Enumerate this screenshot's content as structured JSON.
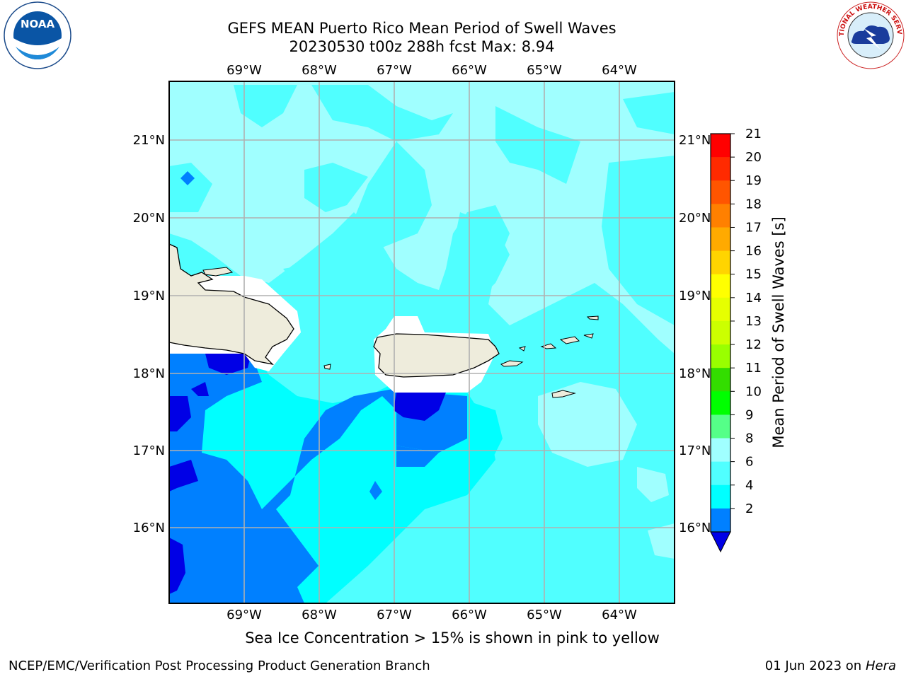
{
  "title": {
    "line1": "GEFS MEAN Puerto Rico Mean Period of Swell Waves",
    "line2": "20230530 t00z 288h fcst   Max: 8.94"
  },
  "map": {
    "lon_labels": [
      "69°W",
      "68°W",
      "67°W",
      "66°W",
      "65°W",
      "64°W"
    ],
    "lat_labels": [
      "21°N",
      "20°N",
      "19°N",
      "18°N",
      "17°N",
      "16°N"
    ],
    "land_color": "#eeecdc",
    "palette": {
      "2-4": "#0000e6",
      "4-6": "#0080ff",
      "6-8": "#00ffff",
      "8-9": "#50ffff",
      "9-10": "#a0ffff"
    }
  },
  "colorbar": {
    "label": "Mean Period of Swell Waves [s]",
    "ticks": [
      "21",
      "20",
      "19",
      "18",
      "17",
      "16",
      "15",
      "14",
      "13",
      "12",
      "11",
      "10",
      "9",
      "8",
      "6",
      "4",
      "2"
    ],
    "colors": [
      "#ff0000",
      "#ff2a00",
      "#ff5500",
      "#ff8000",
      "#ffaa00",
      "#ffd400",
      "#ffff00",
      "#e6ff00",
      "#ccff00",
      "#99ff00",
      "#33dd00",
      "#00ff00",
      "#55ff88",
      "#a0ffff",
      "#50ffff",
      "#00ffff",
      "#0080ff"
    ],
    "under_color": "#0000e6"
  },
  "footnote": "Sea Ice Concentration > 15% is shown in pink to yellow",
  "credit": "NCEP/EMC/Verification Post Processing Product Generation Branch",
  "date": {
    "text": "01 Jun 2023 on",
    "system": "Hera"
  },
  "logos": {
    "left": "NOAA",
    "right": "NATIONAL WEATHER SERVICE"
  }
}
